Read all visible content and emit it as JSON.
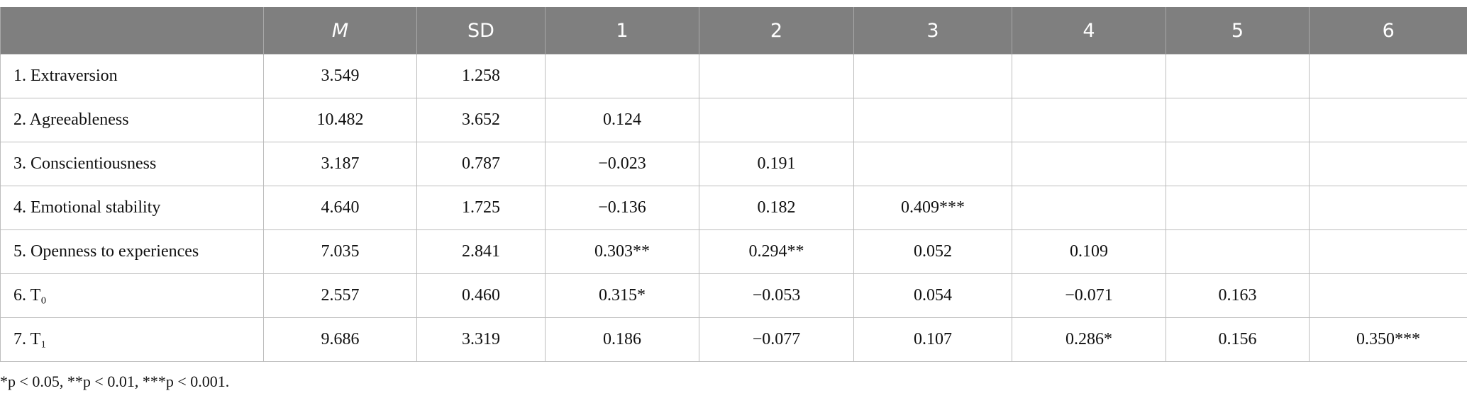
{
  "table": {
    "headers": [
      "M",
      "SD",
      "1",
      "2",
      "3",
      "4",
      "5",
      "6"
    ],
    "rows": [
      {
        "label": "1. Extraversion",
        "m": "3.549",
        "sd": "1.258",
        "r": []
      },
      {
        "label": "2. Agreeableness",
        "m": "10.482",
        "sd": "3.652",
        "r": [
          "0.124"
        ]
      },
      {
        "label": "3. Conscientiousness",
        "m": "3.187",
        "sd": "0.787",
        "r": [
          "−0.023",
          "0.191"
        ]
      },
      {
        "label": "4. Emotional stability",
        "m": "4.640",
        "sd": "1.725",
        "r": [
          "−0.136",
          "0.182",
          "0.409***"
        ]
      },
      {
        "label": "5. Openness to experiences",
        "m": "7.035",
        "sd": "2.841",
        "r": [
          "0.303**",
          "0.294**",
          "0.052",
          "0.109"
        ]
      },
      {
        "label": "6. T₀",
        "m": "2.557",
        "sd": "0.460",
        "r": [
          "0.315*",
          "−0.053",
          "0.054",
          "−0.071",
          "0.163"
        ]
      },
      {
        "label": "7. T₁",
        "m": "9.686",
        "sd": "3.319",
        "r": [
          "0.186",
          "−0.077",
          "0.107",
          "0.286*",
          "0.156",
          "0.350***"
        ]
      }
    ],
    "footnote": "*p < 0.05, **p < 0.01, ***p < 0.001."
  }
}
